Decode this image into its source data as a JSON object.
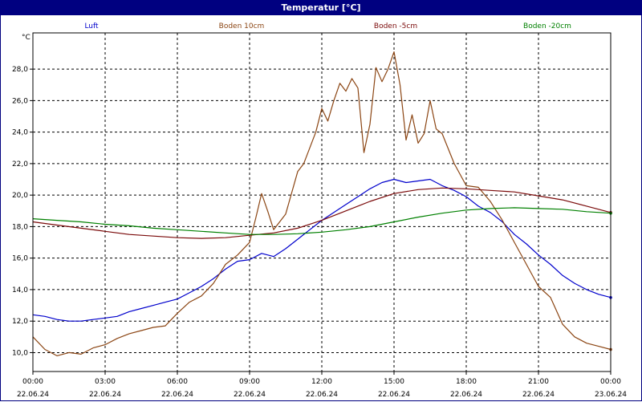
{
  "window": {
    "title": "Temperatur [°C]"
  },
  "chart_data": {
    "type": "line",
    "title": "Temperatur [°C]",
    "ylabel": "°C",
    "xlabel": "",
    "xlim": [
      "22.06.24 00:00",
      "23.06.24 00:00"
    ],
    "ylim": [
      8.8,
      30.3
    ],
    "grid": true,
    "legend_position": "top",
    "y_ticks": [
      "10,0",
      "12,0",
      "14,0",
      "16,0",
      "18,0",
      "20,0",
      "22,0",
      "24,0",
      "26,0",
      "28,0"
    ],
    "y_tick_values": [
      10,
      12,
      14,
      16,
      18,
      20,
      22,
      24,
      26,
      28
    ],
    "x_ticks": [
      {
        "time": "00:00",
        "date": "22.06.24"
      },
      {
        "time": "03:00",
        "date": "22.06.24"
      },
      {
        "time": "06:00",
        "date": "22.06.24"
      },
      {
        "time": "09:00",
        "date": "22.06.24"
      },
      {
        "time": "12:00",
        "date": "22.06.24"
      },
      {
        "time": "15:00",
        "date": "22.06.24"
      },
      {
        "time": "18:00",
        "date": "22.06.24"
      },
      {
        "time": "21:00",
        "date": "22.06.24"
      },
      {
        "time": "00:00",
        "date": "23.06.24"
      }
    ],
    "x_tick_hours": [
      0,
      3,
      6,
      9,
      12,
      15,
      18,
      21,
      24
    ],
    "series": [
      {
        "name": "Luft",
        "color": "#0000cc",
        "x": [
          0,
          0.5,
          1,
          1.5,
          2,
          2.5,
          3,
          3.5,
          4,
          4.5,
          5,
          5.5,
          6,
          6.5,
          7,
          7.5,
          8,
          8.5,
          9,
          9.5,
          10,
          10.5,
          11,
          11.5,
          12,
          12.5,
          13,
          13.5,
          14,
          14.5,
          15,
          15.5,
          16,
          16.5,
          17,
          17.5,
          18,
          18.5,
          19,
          19.5,
          20,
          20.5,
          21,
          21.5,
          22,
          22.5,
          23,
          23.5,
          24
        ],
        "y": [
          12.4,
          12.3,
          12.1,
          12.0,
          12.0,
          12.1,
          12.2,
          12.3,
          12.6,
          12.8,
          13.0,
          13.2,
          13.4,
          13.8,
          14.2,
          14.7,
          15.3,
          15.8,
          15.9,
          16.3,
          16.1,
          16.6,
          17.2,
          17.8,
          18.4,
          18.9,
          19.4,
          19.9,
          20.4,
          20.8,
          21.0,
          20.8,
          20.9,
          21.0,
          20.6,
          20.3,
          19.9,
          19.3,
          18.9,
          18.3,
          17.5,
          16.9,
          16.2,
          15.6,
          14.9,
          14.4,
          14.0,
          13.7,
          13.5
        ]
      },
      {
        "name": "Boden 10cm",
        "color": "#8b4513",
        "x": [
          0,
          0.5,
          1,
          1.5,
          2,
          2.5,
          3,
          3.5,
          4,
          4.5,
          5,
          5.5,
          6,
          6.5,
          7,
          7.5,
          8,
          8.5,
          9,
          9.25,
          9.5,
          9.75,
          10,
          10.5,
          11,
          11.25,
          11.5,
          11.75,
          12,
          12.25,
          12.5,
          12.75,
          13,
          13.25,
          13.5,
          13.75,
          14,
          14.25,
          14.5,
          14.75,
          15,
          15.25,
          15.5,
          15.75,
          16,
          16.25,
          16.5,
          16.75,
          17,
          17.5,
          18,
          18.5,
          19,
          19.5,
          20,
          20.5,
          21,
          21.5,
          22,
          22.5,
          23,
          23.5,
          24
        ],
        "y": [
          11.0,
          10.2,
          9.8,
          10.0,
          9.9,
          10.3,
          10.5,
          10.9,
          11.2,
          11.4,
          11.6,
          11.7,
          12.5,
          13.2,
          13.6,
          14.4,
          15.6,
          16.2,
          17.0,
          18.5,
          20.1,
          19.0,
          17.8,
          18.8,
          21.5,
          22.0,
          23.0,
          24.0,
          25.5,
          24.7,
          26.0,
          27.1,
          26.6,
          27.4,
          26.8,
          22.7,
          24.5,
          28.1,
          27.2,
          28.0,
          29.1,
          27.0,
          23.5,
          25.1,
          23.3,
          23.9,
          26.0,
          24.2,
          23.9,
          22.0,
          20.6,
          20.5,
          19.6,
          18.4,
          17.0,
          15.6,
          14.2,
          13.5,
          11.8,
          11.0,
          10.6,
          10.4,
          10.2
        ]
      },
      {
        "name": "Boden -5cm",
        "color": "#7a0a0a",
        "x": [
          0,
          1,
          2,
          3,
          4,
          5,
          6,
          7,
          8,
          9,
          10,
          11,
          12,
          13,
          14,
          15,
          16,
          17,
          18,
          19,
          20,
          21,
          22,
          23,
          24
        ],
        "y": [
          18.3,
          18.1,
          17.9,
          17.7,
          17.5,
          17.4,
          17.3,
          17.25,
          17.3,
          17.45,
          17.6,
          17.9,
          18.4,
          19.0,
          19.6,
          20.1,
          20.35,
          20.45,
          20.4,
          20.3,
          20.2,
          19.95,
          19.7,
          19.3,
          18.9
        ]
      },
      {
        "name": "Boden -20cm",
        "color": "#008000",
        "x": [
          0,
          1,
          2,
          3,
          4,
          5,
          6,
          7,
          8,
          9,
          10,
          11,
          12,
          13,
          14,
          15,
          16,
          17,
          18,
          19,
          20,
          21,
          22,
          23,
          24
        ],
        "y": [
          18.5,
          18.4,
          18.3,
          18.15,
          18.05,
          17.9,
          17.8,
          17.7,
          17.6,
          17.5,
          17.5,
          17.55,
          17.65,
          17.8,
          18.0,
          18.3,
          18.6,
          18.85,
          19.05,
          19.15,
          19.2,
          19.15,
          19.1,
          18.95,
          18.85
        ]
      }
    ]
  }
}
